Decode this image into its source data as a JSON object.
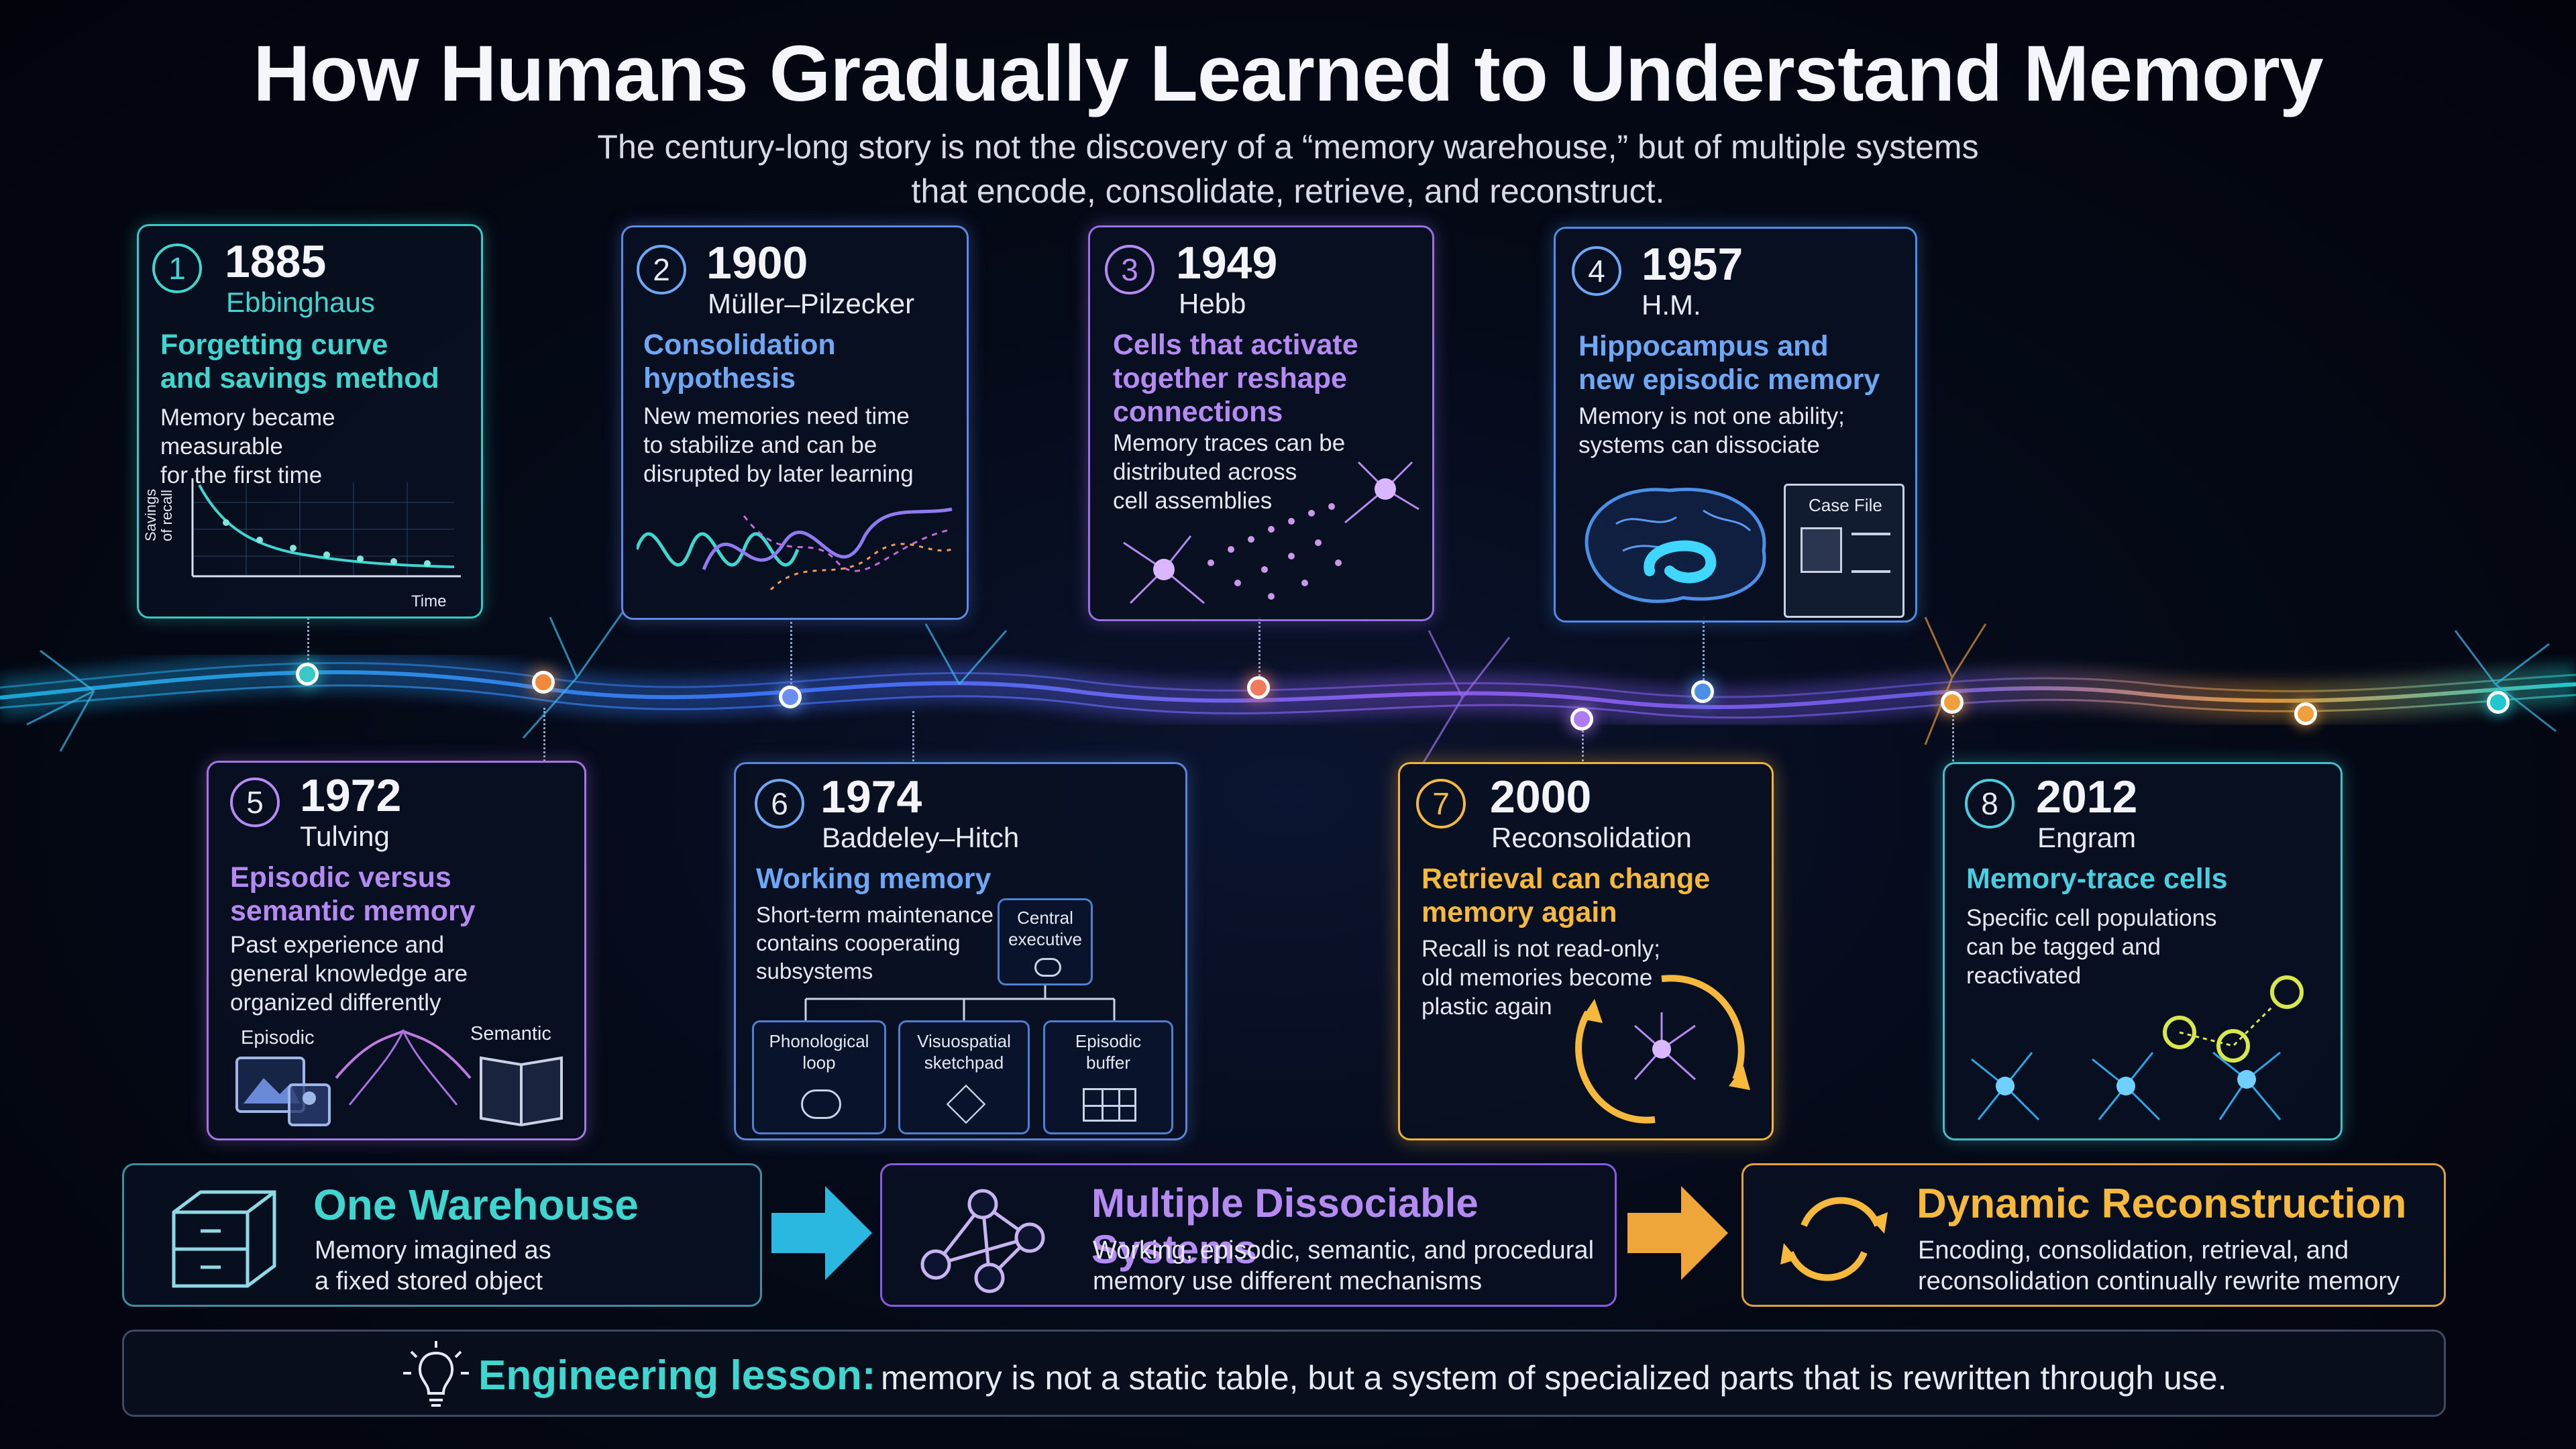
{
  "header": {
    "title": "How Humans Gradually Learned to Understand Memory",
    "subtitle_line1": "The century-long story is not the discovery of a “memory warehouse,” but of multiple systems",
    "subtitle_line2": "that encode, consolidate, retrieve, and reconstruct."
  },
  "milestones": [
    {
      "num": "1",
      "year": "1885",
      "who": "Ebbinghaus",
      "head1": "Forgetting curve",
      "head2": "and savings method",
      "head3": "",
      "desc1": "Memory became",
      "desc2": "measurable",
      "desc3": "for the first time",
      "chart_ylabel1": "Savings",
      "chart_ylabel2": "of recall",
      "chart_xlabel": "Time"
    },
    {
      "num": "2",
      "year": "1900",
      "who": "Müller–Pilzecker",
      "head1": "Consolidation",
      "head2": "hypothesis",
      "head3": "",
      "desc1": "New memories need time",
      "desc2": "to stabilize and can be",
      "desc3": "disrupted by later learning"
    },
    {
      "num": "3",
      "year": "1949",
      "who": "Hebb",
      "head1": "Cells that activate",
      "head2": "together reshape",
      "head3": "connections",
      "desc1": "Memory traces can be",
      "desc2": "distributed across",
      "desc3": "cell assemblies"
    },
    {
      "num": "4",
      "year": "1957",
      "who": "H.M.",
      "head1": "Hippocampus and",
      "head2": "new episodic memory",
      "head3": "",
      "desc1": "Memory is not one ability;",
      "desc2": "systems can dissociate",
      "desc3": "",
      "case_file": "Case File"
    },
    {
      "num": "5",
      "year": "1972",
      "who": "Tulving",
      "head1": "Episodic versus",
      "head2": "semantic memory",
      "head3": "",
      "desc1": "Past experience and",
      "desc2": "general knowledge are",
      "desc3": "organized differently",
      "label_a": "Episodic",
      "label_b": "Semantic"
    },
    {
      "num": "6",
      "year": "1974",
      "who": "Baddeley–Hitch",
      "head1": "Working memory",
      "head2": "",
      "head3": "",
      "desc1": "Short-term maintenance",
      "desc2": "contains cooperating",
      "desc3": "subsystems",
      "central1": "Central",
      "central2": "executive",
      "sub1a": "Phonological",
      "sub1b": "loop",
      "sub2a": "Visuospatial",
      "sub2b": "sketchpad",
      "sub3a": "Episodic",
      "sub3b": "buffer"
    },
    {
      "num": "7",
      "year": "2000",
      "who": "Reconsolidation",
      "head1": "Retrieval can change",
      "head2": "memory again",
      "head3": "",
      "desc1": "Recall is not read-only;",
      "desc2": "old memories become",
      "desc3": "plastic again"
    },
    {
      "num": "8",
      "year": "2012",
      "who": "Engram",
      "head1": "Memory-trace cells",
      "head2": "",
      "head3": "",
      "desc1": "Specific cell populations",
      "desc2": "can be tagged and",
      "desc3": "reactivated"
    }
  ],
  "summary": [
    {
      "title": "One Warehouse",
      "desc1": "Memory imagined as",
      "desc2": "a fixed stored object",
      "icon": "cabinet-icon"
    },
    {
      "title": "Multiple Dissociable Systems",
      "desc1": "Working, episodic, semantic, and procedural",
      "desc2": "memory use different mechanisms",
      "icon": "network-icon"
    },
    {
      "title": "Dynamic Reconstruction",
      "desc1": "Encoding, consolidation, retrieval, and",
      "desc2": "reconsolidation continually rewrite memory",
      "icon": "cycle-icon"
    }
  ],
  "lesson": {
    "label": "Engineering lesson:",
    "text": "memory is not a static table, but a system of specialized parts that is rewritten through use."
  },
  "colors": {
    "teal": "#3fd6cf",
    "blue": "#6ea8f5",
    "violet": "#b58af2",
    "gold": "#f6b93b",
    "cyan": "#49cfe0"
  }
}
